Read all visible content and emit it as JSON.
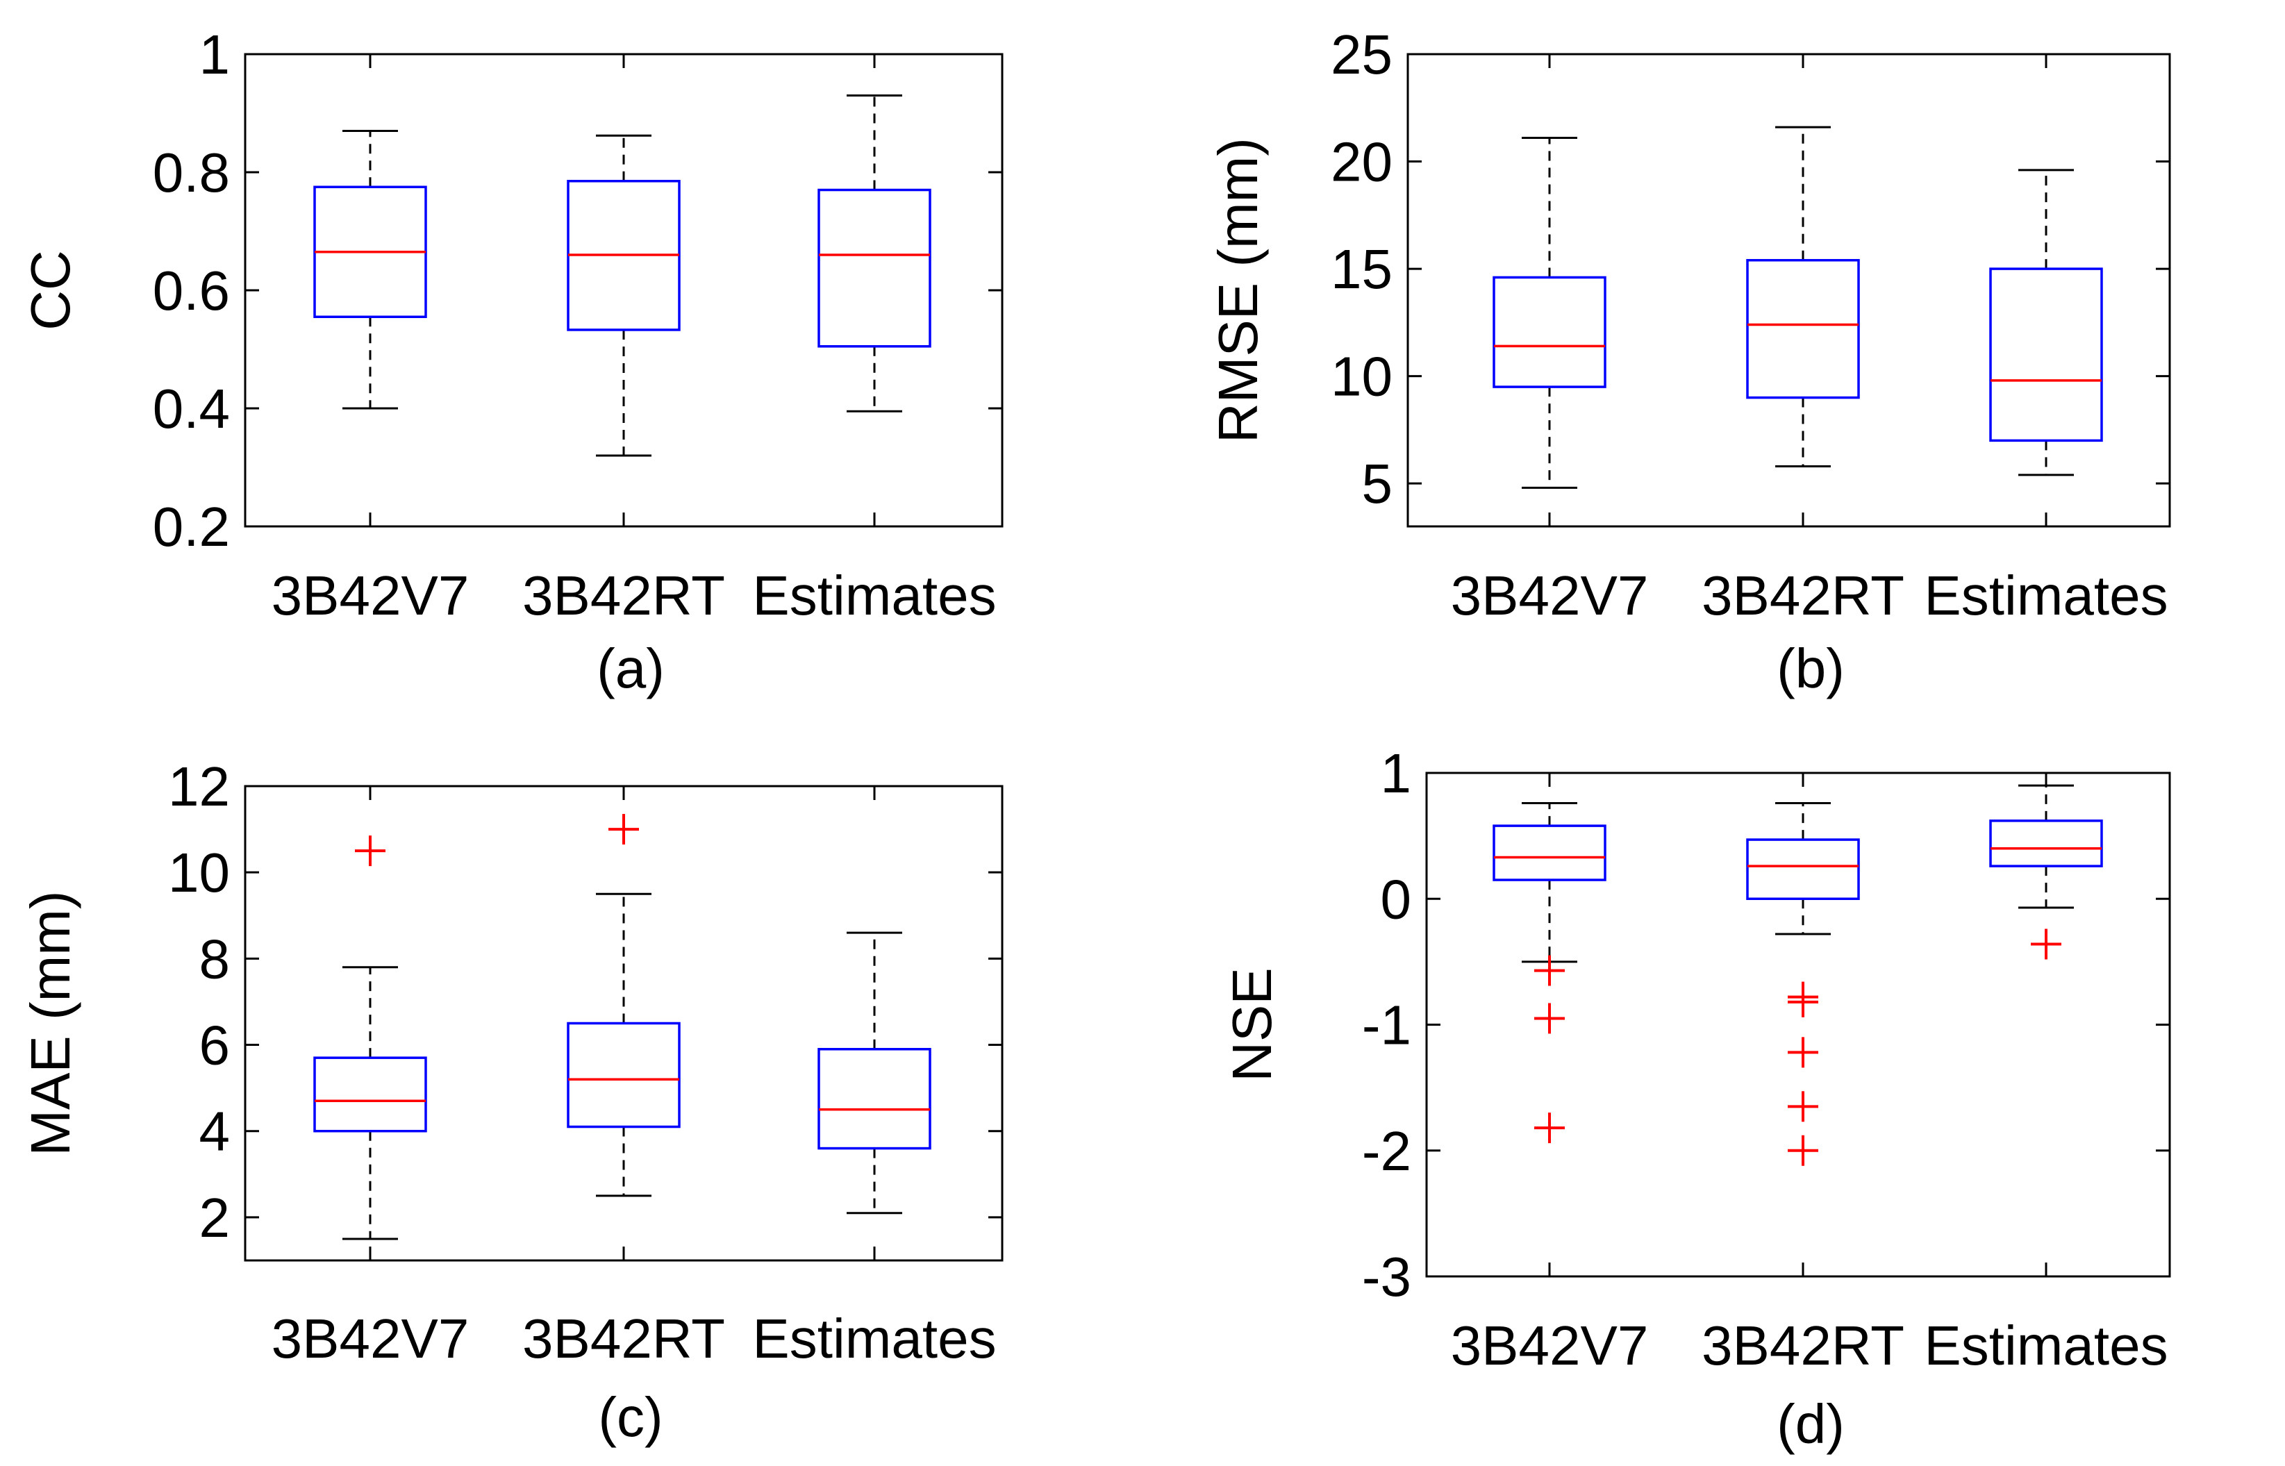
{
  "chart_data": [
    {
      "type": "box",
      "ylabel": "CC",
      "caption": "(a)",
      "categories": [
        "3B42V7",
        "3B42RT",
        "Estimates"
      ],
      "ylim": [
        0.2,
        1.0
      ],
      "yticks": [
        0.2,
        0.4,
        0.6,
        0.8,
        1.0
      ],
      "ytick_labels": [
        "0.2",
        "0.4",
        "0.6",
        "0.8",
        "1"
      ],
      "grid": false,
      "boxes": [
        {
          "name": "3B42V7",
          "whisker_low": 0.4,
          "q1": 0.555,
          "median": 0.665,
          "q3": 0.775,
          "whisker_high": 0.87,
          "outliers": []
        },
        {
          "name": "3B42RT",
          "whisker_low": 0.32,
          "q1": 0.533,
          "median": 0.66,
          "q3": 0.785,
          "whisker_high": 0.862,
          "outliers": []
        },
        {
          "name": "Estimates",
          "whisker_low": 0.395,
          "q1": 0.505,
          "median": 0.66,
          "q3": 0.77,
          "whisker_high": 0.93,
          "outliers": []
        }
      ]
    },
    {
      "type": "box",
      "ylabel": "RMSE (mm)",
      "caption": "(b)",
      "categories": [
        "3B42V7",
        "3B42RT",
        "Estimates"
      ],
      "ylim": [
        3,
        25
      ],
      "yticks": [
        5,
        10,
        15,
        20,
        25
      ],
      "ytick_labels": [
        "5",
        "10",
        "15",
        "20",
        "25"
      ],
      "grid": false,
      "boxes": [
        {
          "name": "3B42V7",
          "whisker_low": 4.8,
          "q1": 9.5,
          "median": 11.4,
          "q3": 14.6,
          "whisker_high": 21.1,
          "outliers": []
        },
        {
          "name": "3B42RT",
          "whisker_low": 5.8,
          "q1": 9.0,
          "median": 12.4,
          "q3": 15.4,
          "whisker_high": 21.6,
          "outliers": []
        },
        {
          "name": "Estimates",
          "whisker_low": 5.4,
          "q1": 7.0,
          "median": 9.8,
          "q3": 15.0,
          "whisker_high": 19.6,
          "outliers": []
        }
      ]
    },
    {
      "type": "box",
      "ylabel": "MAE (mm)",
      "caption": "(c)",
      "categories": [
        "3B42V7",
        "3B42RT",
        "Estimates"
      ],
      "ylim": [
        1,
        12
      ],
      "yticks": [
        2,
        4,
        6,
        8,
        10,
        12
      ],
      "ytick_labels": [
        "2",
        "4",
        "6",
        "8",
        "10",
        "12"
      ],
      "grid": false,
      "boxes": [
        {
          "name": "3B42V7",
          "whisker_low": 1.5,
          "q1": 4.0,
          "median": 4.7,
          "q3": 5.7,
          "whisker_high": 7.8,
          "outliers": [
            10.5
          ]
        },
        {
          "name": "3B42RT",
          "whisker_low": 2.5,
          "q1": 4.1,
          "median": 5.2,
          "q3": 6.5,
          "whisker_high": 9.5,
          "outliers": [
            11.0
          ]
        },
        {
          "name": "Estimates",
          "whisker_low": 2.1,
          "q1": 3.6,
          "median": 4.5,
          "q3": 5.9,
          "whisker_high": 8.6,
          "outliers": []
        }
      ]
    },
    {
      "type": "box",
      "ylabel": "NSE",
      "caption": "(d)",
      "categories": [
        "3B42V7",
        "3B42RT",
        "Estimates"
      ],
      "ylim": [
        -3,
        1
      ],
      "yticks": [
        -3,
        -2,
        -1,
        0,
        1
      ],
      "ytick_labels": [
        "-3",
        "-2",
        "-1",
        "0",
        "1"
      ],
      "grid": false,
      "boxes": [
        {
          "name": "3B42V7",
          "whisker_low": -0.5,
          "q1": 0.15,
          "median": 0.33,
          "q3": 0.58,
          "whisker_high": 0.76,
          "outliers": [
            -0.57,
            -0.95,
            -1.82
          ]
        },
        {
          "name": "3B42RT",
          "whisker_low": -0.28,
          "q1": 0.0,
          "median": 0.26,
          "q3": 0.47,
          "whisker_high": 0.76,
          "outliers": [
            -0.78,
            -0.82,
            -1.22,
            -1.65,
            -2.0
          ]
        },
        {
          "name": "Estimates",
          "whisker_low": -0.07,
          "q1": 0.26,
          "median": 0.4,
          "q3": 0.62,
          "whisker_high": 0.9,
          "outliers": [
            -0.36
          ]
        }
      ]
    }
  ]
}
